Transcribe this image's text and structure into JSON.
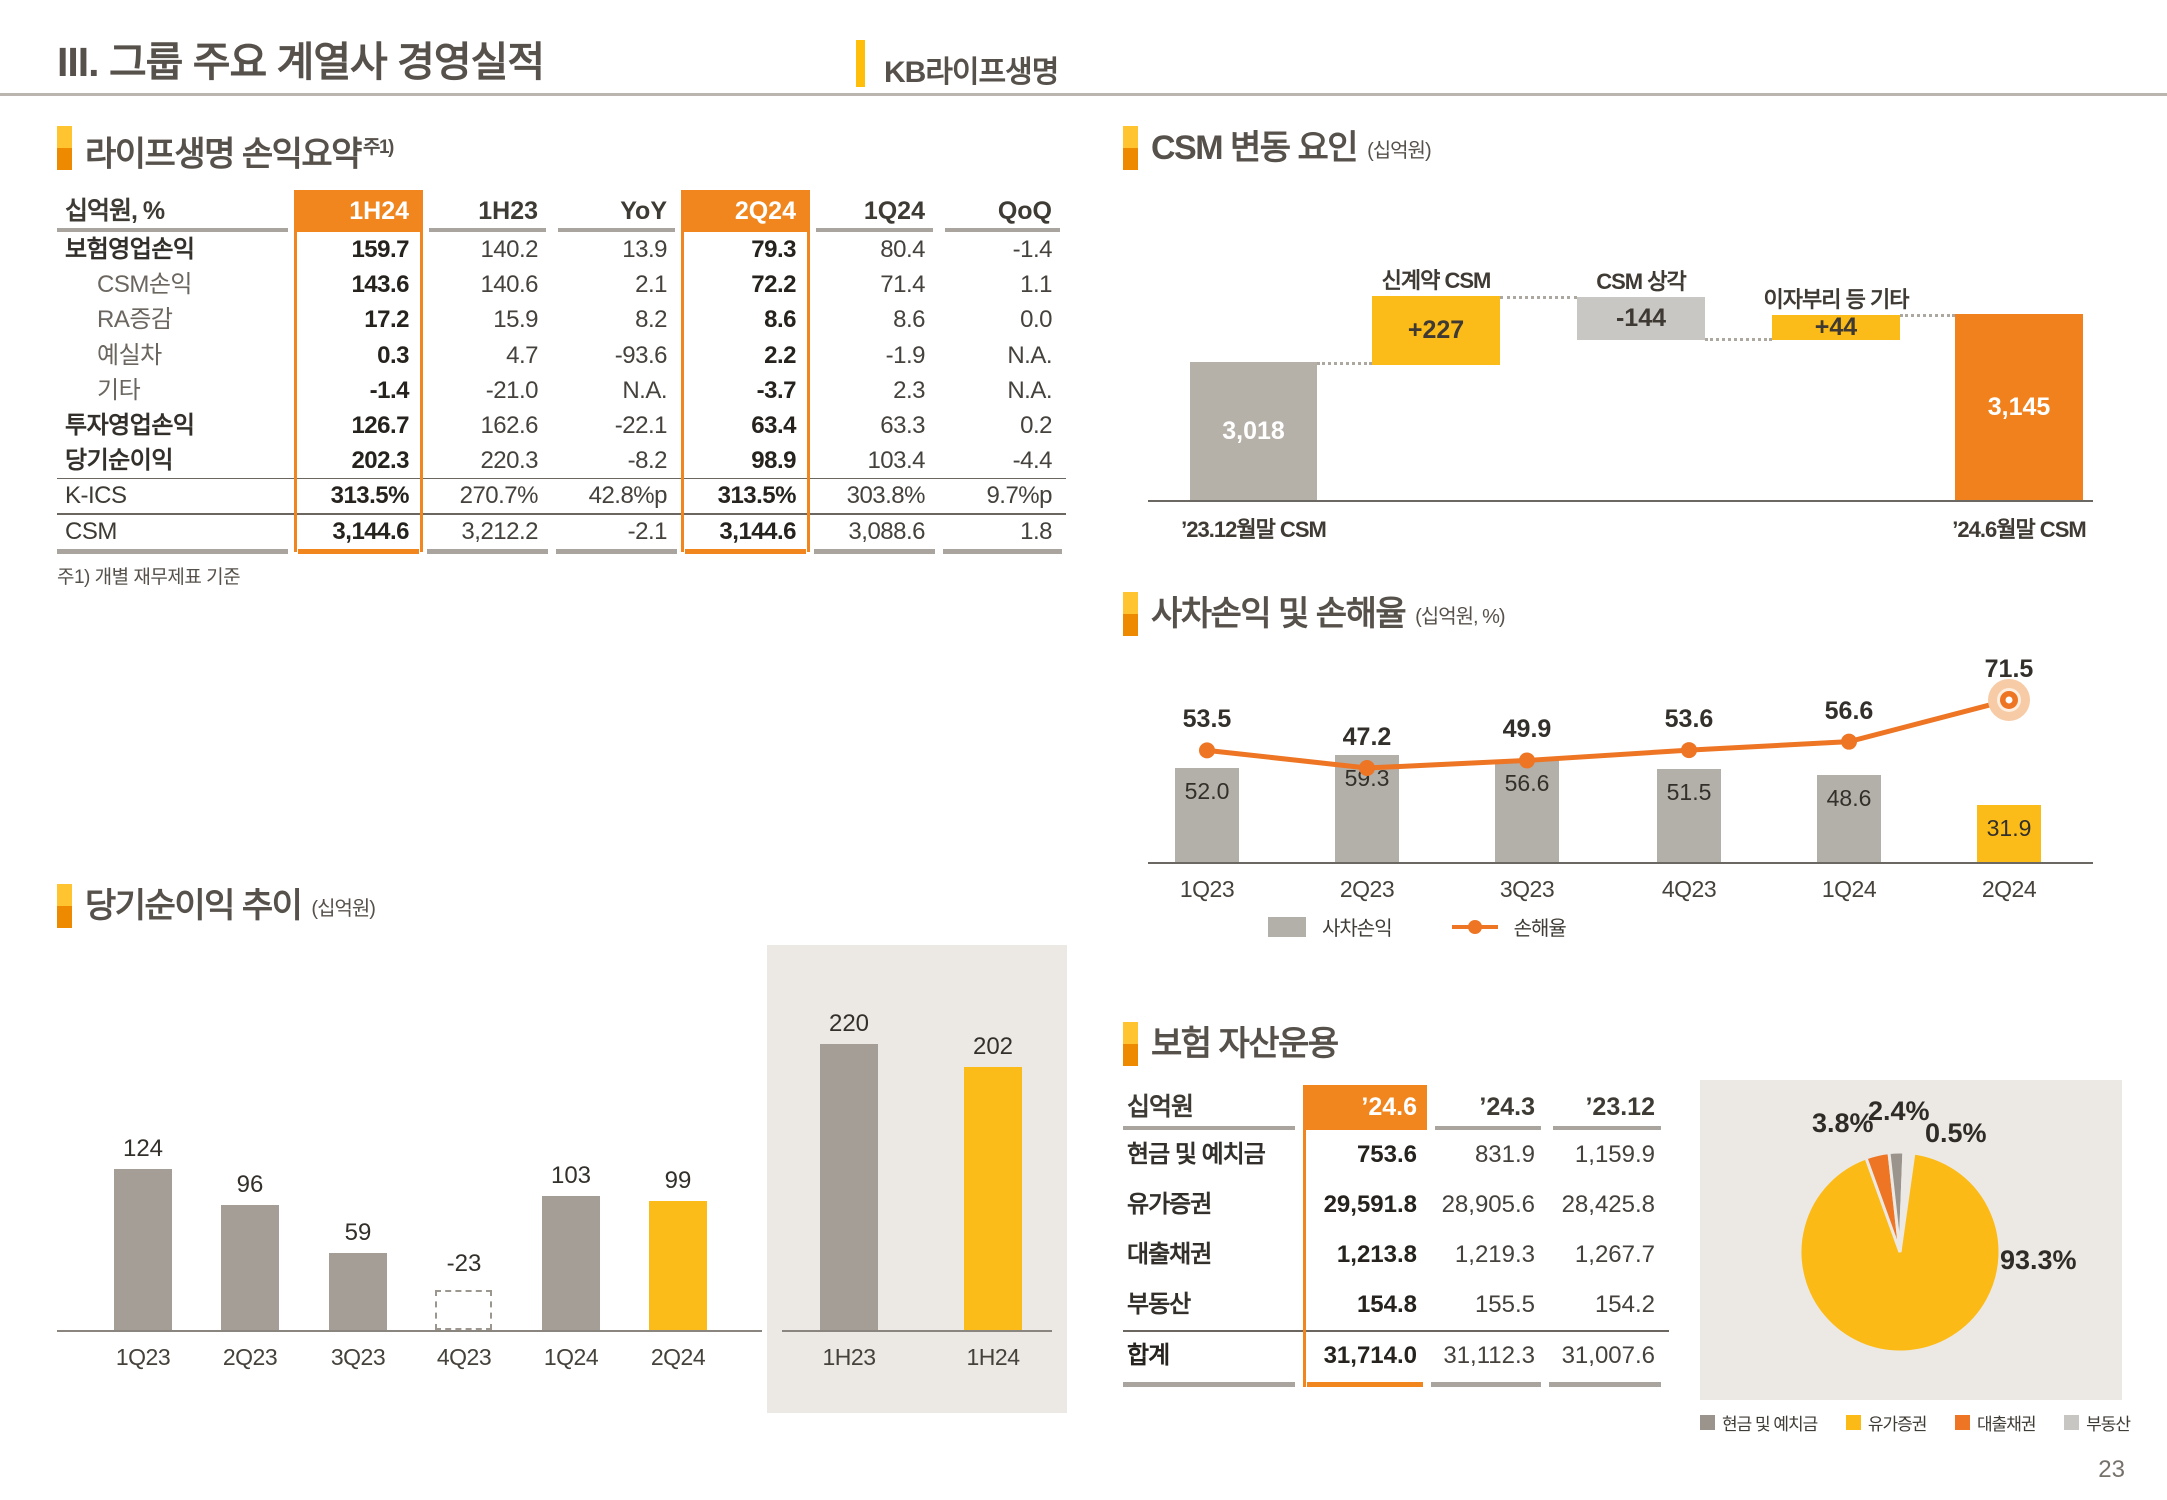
{
  "page_number": "23",
  "header": {
    "title": "III. 그룹 주요 계열사 경영실적",
    "subtitle": "KB라이프생명"
  },
  "income_summary": {
    "title": "라이프생명 손익요약",
    "title_sup": "주1)",
    "footnote": "주1) 개별 재무제표 기준",
    "unit_header": "십억원, %",
    "columns": [
      {
        "label": "1H24",
        "highlight": true
      },
      {
        "label": "1H23",
        "highlight": false
      },
      {
        "label": "YoY",
        "highlight": false
      },
      {
        "label": "2Q24",
        "highlight": true
      },
      {
        "label": "1Q24",
        "highlight": false
      },
      {
        "label": "QoQ",
        "highlight": false
      }
    ],
    "rows": [
      {
        "label": "보험영업손익",
        "style": "main",
        "values": [
          "159.7",
          "140.2",
          "13.9",
          "79.3",
          "80.4",
          "-1.4"
        ]
      },
      {
        "label": "CSM손익",
        "style": "sub",
        "values": [
          "143.6",
          "140.6",
          "2.1",
          "72.2",
          "71.4",
          "1.1"
        ]
      },
      {
        "label": "RA증감",
        "style": "sub",
        "values": [
          "17.2",
          "15.9",
          "8.2",
          "8.6",
          "8.6",
          "0.0"
        ]
      },
      {
        "label": "예실차",
        "style": "sub",
        "values": [
          "0.3",
          "4.7",
          "-93.6",
          "2.2",
          "-1.9",
          "N.A."
        ]
      },
      {
        "label": "기타",
        "style": "sub",
        "values": [
          "-1.4",
          "-21.0",
          "N.A.",
          "-3.7",
          "2.3",
          "N.A."
        ]
      },
      {
        "label": "투자영업손익",
        "style": "main",
        "values": [
          "126.7",
          "162.6",
          "-22.1",
          "63.4",
          "63.3",
          "0.2"
        ]
      },
      {
        "label": "당기순이익",
        "style": "main",
        "values": [
          "202.3",
          "220.3",
          "-8.2",
          "98.9",
          "103.4",
          "-4.4"
        ]
      },
      {
        "label": "K-ICS",
        "style": "kpi",
        "values": [
          "313.5%",
          "270.7%",
          "42.8%p",
          "313.5%",
          "303.8%",
          "9.7%p"
        ]
      },
      {
        "label": "CSM",
        "style": "kpi",
        "values": [
          "3,144.6",
          "3,212.2",
          "-2.1",
          "3,144.6",
          "3,088.6",
          "1.8"
        ]
      }
    ]
  },
  "net_income": {
    "title": "당기순이익 추이",
    "unit": "(십억원)",
    "quarterly": [
      {
        "label": "1Q23",
        "value": 124,
        "display": "124",
        "color": "gray"
      },
      {
        "label": "2Q23",
        "value": 96,
        "display": "96",
        "color": "gray"
      },
      {
        "label": "3Q23",
        "value": 59,
        "display": "59",
        "color": "gray"
      },
      {
        "label": "4Q23",
        "value": -23,
        "display": "-23",
        "color": "dashed"
      },
      {
        "label": "1Q24",
        "value": 103,
        "display": "103",
        "color": "gray"
      },
      {
        "label": "2Q24",
        "value": 99,
        "display": "99",
        "color": "yellow"
      }
    ],
    "half": [
      {
        "label": "1H23",
        "value": 220,
        "display": "220",
        "color": "gray"
      },
      {
        "label": "1H24",
        "value": 202,
        "display": "202",
        "color": "yellow"
      }
    ]
  },
  "csm_waterfall": {
    "title": "CSM 변동 요인",
    "unit": "(십억원)",
    "bars": [
      {
        "name": "’23.12월말 CSM",
        "display": "3,018",
        "type": "total"
      },
      {
        "name": "신계약 CSM",
        "display": "+227",
        "type": "up"
      },
      {
        "name": "CSM 상각",
        "display": "-144",
        "type": "down"
      },
      {
        "name": "이자부리 등 기타",
        "display": "+44",
        "type": "up"
      },
      {
        "name": "’24.6월말 CSM",
        "display": "3,145",
        "type": "total"
      }
    ]
  },
  "loss_ratio": {
    "title": "사차손익 및 손해율",
    "unit": "(십억원, %)",
    "categories": [
      "1Q23",
      "2Q23",
      "3Q23",
      "4Q23",
      "1Q24",
      "2Q24"
    ],
    "bars": [
      52.0,
      59.3,
      56.6,
      51.5,
      48.6,
      31.9
    ],
    "bar_labels": [
      "52.0",
      "59.3",
      "56.6",
      "51.5",
      "48.6",
      "31.9"
    ],
    "line": [
      53.5,
      47.2,
      49.9,
      53.6,
      56.6,
      71.5
    ],
    "line_labels": [
      "53.5",
      "47.2",
      "49.9",
      "53.6",
      "56.6",
      "71.5"
    ],
    "legend": [
      {
        "label": "사차손익"
      },
      {
        "label": "손해율"
      }
    ]
  },
  "asset_mgmt": {
    "title": "보험 자산운용",
    "unit_header": "십억원",
    "columns": [
      {
        "label": "’24.6",
        "highlight": true
      },
      {
        "label": "’24.3",
        "highlight": false
      },
      {
        "label": "’23.12",
        "highlight": false
      }
    ],
    "rows": [
      {
        "label": "현금 및 예치금",
        "values": [
          "753.6",
          "831.9",
          "1,159.9"
        ]
      },
      {
        "label": "유가증권",
        "values": [
          "29,591.8",
          "28,905.6",
          "28,425.8"
        ]
      },
      {
        "label": "대출채권",
        "values": [
          "1,213.8",
          "1,219.3",
          "1,267.7"
        ]
      },
      {
        "label": "부동산",
        "values": [
          "154.8",
          "155.5",
          "154.2"
        ]
      }
    ],
    "total_row": {
      "label": "합계",
      "values": [
        "31,714.0",
        "31,112.3",
        "31,007.6"
      ]
    },
    "pie": {
      "slices": [
        {
          "label": "유가증권",
          "pct": 93.3,
          "display": "93.3%",
          "color": "#FBBA16"
        },
        {
          "label": "대출채권",
          "pct": 3.8,
          "display": "3.8%",
          "color": "#ED7524"
        },
        {
          "label": "현금 및 예치금",
          "pct": 2.4,
          "display": "2.4%",
          "color": "#9A948C"
        },
        {
          "label": "부동산",
          "pct": 0.5,
          "display": "0.5%",
          "color": "#C8C6C3"
        }
      ],
      "legend": [
        {
          "label": "현금 및 예치금",
          "color": "#9A948C"
        },
        {
          "label": "유가증권",
          "color": "#FBBA16"
        },
        {
          "label": "대출채권",
          "color": "#ED7524"
        },
        {
          "label": "부동산",
          "color": "#C8C6C3"
        }
      ]
    }
  },
  "chart_data": [
    {
      "type": "bar",
      "subtype": "waterfall",
      "title": "CSM 변동 요인 (십억원)",
      "categories": [
        "’23.12월말 CSM",
        "신계약 CSM",
        "CSM 상각",
        "이자부리 등 기타",
        "’24.6월말 CSM"
      ],
      "values": [
        3018,
        227,
        -144,
        44,
        3145
      ]
    },
    {
      "type": "bar",
      "subtype": "bar+line",
      "title": "사차손익 및 손해율 (십억원, %)",
      "categories": [
        "1Q23",
        "2Q23",
        "3Q23",
        "4Q23",
        "1Q24",
        "2Q24"
      ],
      "series": [
        {
          "name": "사차손익",
          "type": "bar",
          "values": [
            52.0,
            59.3,
            56.6,
            51.5,
            48.6,
            31.9
          ]
        },
        {
          "name": "손해율",
          "type": "line",
          "values": [
            53.5,
            47.2,
            49.9,
            53.6,
            56.6,
            71.5
          ]
        }
      ]
    },
    {
      "type": "bar",
      "title": "당기순이익 추이 (십억원)",
      "categories": [
        "1Q23",
        "2Q23",
        "3Q23",
        "4Q23",
        "1Q24",
        "2Q24",
        "1H23",
        "1H24"
      ],
      "values": [
        124,
        96,
        59,
        -23,
        103,
        99,
        220,
        202
      ]
    },
    {
      "type": "pie",
      "title": "보험 자산운용 구성",
      "labels": [
        "유가증권",
        "대출채권",
        "현금 및 예치금",
        "부동산"
      ],
      "values": [
        93.3,
        3.8,
        2.4,
        0.5
      ]
    }
  ]
}
